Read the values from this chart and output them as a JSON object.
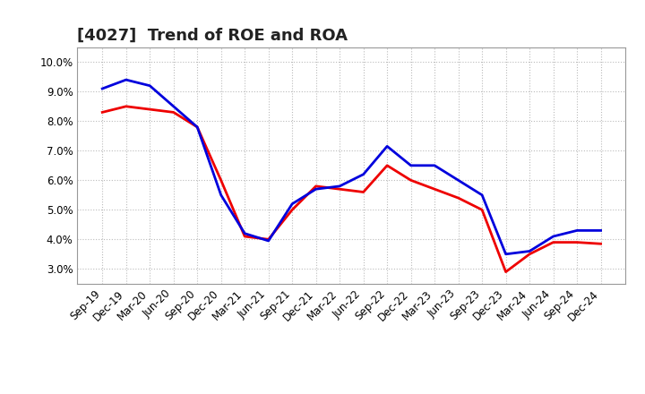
{
  "title": "[4027]  Trend of ROE and ROA",
  "x_labels": [
    "Sep-19",
    "Dec-19",
    "Mar-20",
    "Jun-20",
    "Sep-20",
    "Dec-20",
    "Mar-21",
    "Jun-21",
    "Sep-21",
    "Dec-21",
    "Mar-22",
    "Jun-22",
    "Sep-22",
    "Dec-22",
    "Mar-23",
    "Jun-23",
    "Sep-23",
    "Dec-23",
    "Mar-24",
    "Jun-24",
    "Sep-24",
    "Dec-24"
  ],
  "roe": [
    8.3,
    8.5,
    8.4,
    8.3,
    7.8,
    6.0,
    4.1,
    4.0,
    5.0,
    5.8,
    5.7,
    5.6,
    6.5,
    6.0,
    5.7,
    5.4,
    5.0,
    2.9,
    3.5,
    3.9,
    3.9,
    3.85
  ],
  "roa": [
    9.1,
    9.4,
    9.2,
    8.5,
    7.8,
    5.5,
    4.2,
    3.95,
    5.2,
    5.7,
    5.8,
    6.2,
    7.15,
    6.5,
    6.5,
    6.0,
    5.5,
    3.5,
    3.6,
    4.1,
    4.3,
    4.3
  ],
  "roe_color": "#ee0000",
  "roa_color": "#0000dd",
  "ylim": [
    2.5,
    10.5
  ],
  "yticks": [
    3.0,
    4.0,
    5.0,
    6.0,
    7.0,
    8.0,
    9.0,
    10.0
  ],
  "background_color": "#ffffff",
  "grid_color": "#bbbbbb",
  "linewidth": 2.0,
  "title_fontsize": 13,
  "tick_fontsize": 8.5,
  "legend_fontsize": 10
}
